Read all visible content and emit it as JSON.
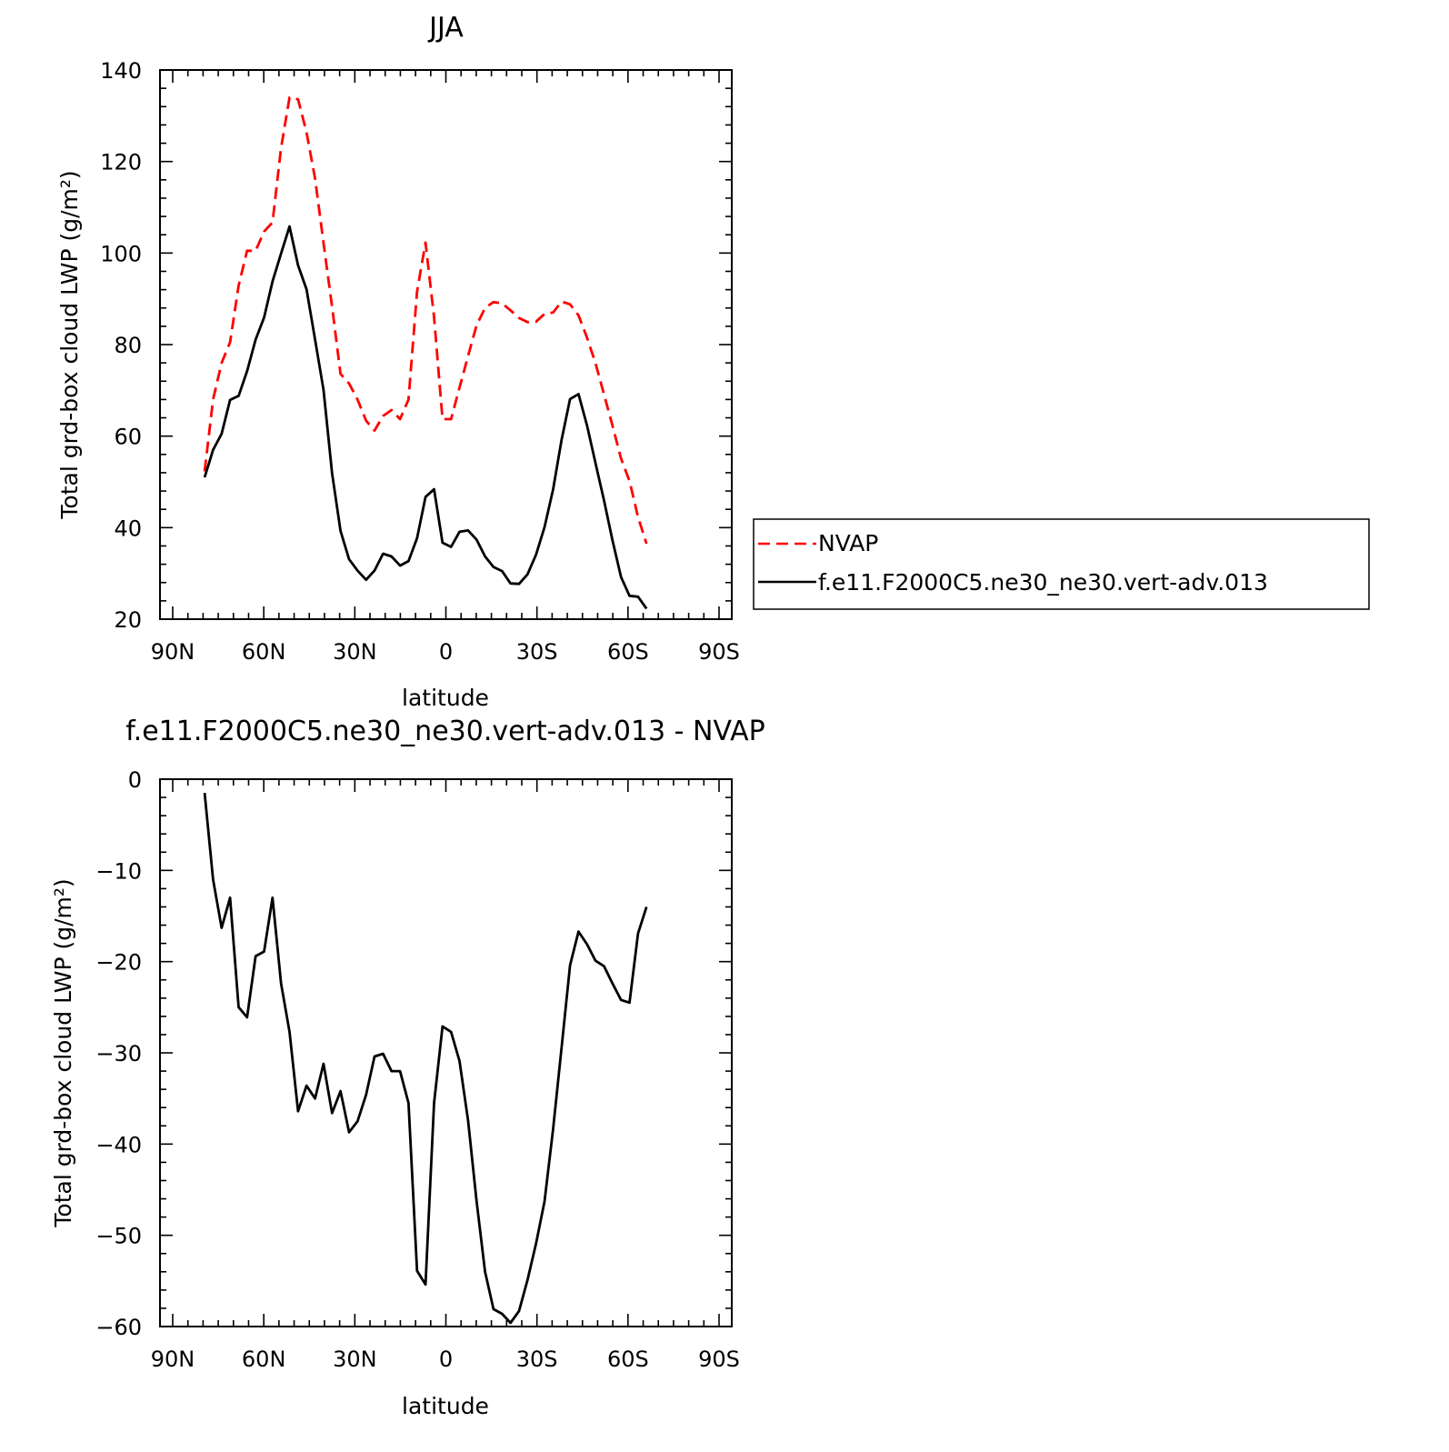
{
  "chart_data": [
    {
      "type": "line",
      "title": "JJA",
      "xlabel": "latitude",
      "ylabel": "Total grd-box cloud LWP (g/m²)",
      "xlim": [
        90,
        -90
      ],
      "ylim": [
        20,
        140
      ],
      "x_ticks": [
        90,
        60,
        30,
        0,
        -30,
        -60,
        -90
      ],
      "x_tick_labels": [
        "90N",
        "60N",
        "30N",
        "0",
        "30S",
        "60S",
        "90S"
      ],
      "y_ticks": [
        20,
        40,
        60,
        80,
        100,
        120,
        140
      ],
      "y_tick_labels": [
        "20",
        "40",
        "60",
        "80",
        "100",
        "120",
        "140"
      ],
      "grid": false,
      "legend_position": "right",
      "series": [
        {
          "name": "NVAP",
          "color": "#ff0000",
          "dash": "dashed",
          "points": [
            [
              79.5,
              52.3
            ],
            [
              76.7,
              68
            ],
            [
              73.9,
              76
            ],
            [
              71.1,
              80.5
            ],
            [
              68.3,
              92.9
            ],
            [
              65.5,
              100.5
            ],
            [
              62.7,
              100.5
            ],
            [
              59.9,
              104.7
            ],
            [
              57.1,
              106.7
            ],
            [
              54.3,
              123
            ],
            [
              51.5,
              134
            ],
            [
              48.7,
              133.6
            ],
            [
              45.9,
              126.4
            ],
            [
              43.1,
              116.3
            ],
            [
              40.3,
              102.2
            ],
            [
              37.5,
              88.3
            ],
            [
              34.7,
              73.6
            ],
            [
              31.9,
              71.5
            ],
            [
              29.1,
              68
            ],
            [
              26.3,
              63.4
            ],
            [
              23.5,
              61.2
            ],
            [
              20.7,
              64.4
            ],
            [
              17.9,
              65.7
            ],
            [
              15.1,
              63.7
            ],
            [
              12.3,
              68
            ],
            [
              9.5,
              91.6
            ],
            [
              6.7,
              102.3
            ],
            [
              3.9,
              86
            ],
            [
              1.1,
              63.7
            ],
            [
              -1.7,
              63.7
            ],
            [
              -4.5,
              70.6
            ],
            [
              -7.3,
              77.5
            ],
            [
              -10.1,
              84.2
            ],
            [
              -12.9,
              88
            ],
            [
              -15.7,
              89.3
            ],
            [
              -18.5,
              89
            ],
            [
              -21.3,
              87.5
            ],
            [
              -24.1,
              85.8
            ],
            [
              -26.9,
              84.9
            ],
            [
              -29.7,
              85
            ],
            [
              -32.5,
              86.7
            ],
            [
              -35.3,
              87
            ],
            [
              -38.1,
              89.4
            ],
            [
              -40.9,
              88.8
            ],
            [
              -43.7,
              86.4
            ],
            [
              -46.5,
              81.5
            ],
            [
              -49.3,
              75.9
            ],
            [
              -52.1,
              69.1
            ],
            [
              -54.9,
              62.3
            ],
            [
              -57.7,
              55.1
            ],
            [
              -60.5,
              50.2
            ],
            [
              -63.3,
              42.3
            ],
            [
              -66.1,
              36.5
            ]
          ]
        },
        {
          "name": "f.e11.F2000C5.ne30_ne30.vert-adv.013",
          "color": "#000000",
          "dash": "solid",
          "points": [
            [
              79.5,
              51
            ],
            [
              76.7,
              57
            ],
            [
              73.9,
              60.5
            ],
            [
              71.1,
              67.9
            ],
            [
              68.3,
              68.8
            ],
            [
              65.5,
              74.2
            ],
            [
              62.7,
              81.1
            ],
            [
              59.9,
              85.9
            ],
            [
              57.1,
              93.8
            ],
            [
              54.3,
              99.9
            ],
            [
              51.5,
              105.8
            ],
            [
              48.7,
              97.3
            ],
            [
              45.9,
              92.1
            ],
            [
              43.1,
              81.1
            ],
            [
              40.3,
              70.1
            ],
            [
              37.5,
              51.9
            ],
            [
              34.7,
              39.3
            ],
            [
              31.9,
              33.1
            ],
            [
              29.1,
              30.6
            ],
            [
              26.3,
              28.6
            ],
            [
              23.5,
              30.6
            ],
            [
              20.7,
              34.3
            ],
            [
              17.9,
              33.7
            ],
            [
              15.1,
              31.7
            ],
            [
              12.3,
              32.7
            ],
            [
              9.5,
              37.7
            ],
            [
              6.7,
              46.7
            ],
            [
              3.9,
              48.4
            ],
            [
              1.1,
              36.7
            ],
            [
              -1.7,
              35.8
            ],
            [
              -4.5,
              39.1
            ],
            [
              -7.3,
              39.4
            ],
            [
              -10.1,
              37.4
            ],
            [
              -12.9,
              33.7
            ],
            [
              -15.7,
              31.4
            ],
            [
              -18.5,
              30.5
            ],
            [
              -21.3,
              27.8
            ],
            [
              -24.1,
              27.7
            ],
            [
              -26.9,
              29.8
            ],
            [
              -29.7,
              34.1
            ],
            [
              -32.5,
              40.1
            ],
            [
              -35.3,
              48.3
            ],
            [
              -38.1,
              59.1
            ],
            [
              -40.9,
              68.1
            ],
            [
              -43.7,
              69.2
            ],
            [
              -46.5,
              62.3
            ],
            [
              -49.3,
              54.1
            ],
            [
              -52.1,
              45.9
            ],
            [
              -54.9,
              37.2
            ],
            [
              -57.7,
              29.2
            ],
            [
              -60.5,
              25.1
            ],
            [
              -63.3,
              24.9
            ],
            [
              -66.1,
              22.3
            ]
          ]
        }
      ]
    },
    {
      "type": "line",
      "title": "f.e11.F2000C5.ne30_ne30.vert-adv.013 - NVAP",
      "xlabel": "latitude",
      "ylabel": "Total grd-box cloud LWP (g/m²)",
      "xlim": [
        90,
        -90
      ],
      "ylim": [
        -60,
        0
      ],
      "x_ticks": [
        90,
        60,
        30,
        0,
        -30,
        -60,
        -90
      ],
      "x_tick_labels": [
        "90N",
        "60N",
        "30N",
        "0",
        "30S",
        "60S",
        "90S"
      ],
      "y_ticks": [
        0,
        -10,
        -20,
        -30,
        -40,
        -50,
        -60
      ],
      "y_tick_labels": [
        "0",
        "−10",
        "−20",
        "−30",
        "−40",
        "−50",
        "−60"
      ],
      "grid": false,
      "series": [
        {
          "color": "#000000",
          "dash": "solid",
          "points": [
            [
              79.5,
              -1.5
            ],
            [
              76.7,
              -11
            ],
            [
              73.9,
              -16.3
            ],
            [
              71.1,
              -13
            ],
            [
              68.3,
              -25
            ],
            [
              65.5,
              -26.1
            ],
            [
              62.7,
              -19.4
            ],
            [
              59.9,
              -18.9
            ],
            [
              57.1,
              -13
            ],
            [
              54.3,
              -22.4
            ],
            [
              51.5,
              -27.7
            ],
            [
              48.7,
              -36.4
            ],
            [
              45.9,
              -33.6
            ],
            [
              43.1,
              -35
            ],
            [
              40.3,
              -31.2
            ],
            [
              37.5,
              -36.6
            ],
            [
              34.7,
              -34.2
            ],
            [
              31.9,
              -38.7
            ],
            [
              29.1,
              -37.5
            ],
            [
              26.3,
              -34.6
            ],
            [
              23.5,
              -30.4
            ],
            [
              20.7,
              -30.1
            ],
            [
              17.9,
              -32
            ],
            [
              15.1,
              -32
            ],
            [
              12.3,
              -35.5
            ],
            [
              9.5,
              -53.9
            ],
            [
              6.7,
              -55.4
            ],
            [
              3.9,
              -35.5
            ],
            [
              1.1,
              -27.1
            ],
            [
              -1.7,
              -27.7
            ],
            [
              -4.5,
              -30.9
            ],
            [
              -7.3,
              -37.4
            ],
            [
              -10.1,
              -46.2
            ],
            [
              -12.9,
              -54
            ],
            [
              -15.7,
              -58.1
            ],
            [
              -18.5,
              -58.6
            ],
            [
              -21.3,
              -59.6
            ],
            [
              -24.1,
              -58.3
            ],
            [
              -26.9,
              -54.9
            ],
            [
              -29.7,
              -50.9
            ],
            [
              -32.5,
              -46.3
            ],
            [
              -35.3,
              -38.4
            ],
            [
              -38.1,
              -29.5
            ],
            [
              -40.9,
              -20.4
            ],
            [
              -43.7,
              -16.7
            ],
            [
              -46.5,
              -18.1
            ],
            [
              -49.3,
              -19.9
            ],
            [
              -52.1,
              -20.5
            ],
            [
              -54.9,
              -22.4
            ],
            [
              -57.7,
              -24.2
            ],
            [
              -60.5,
              -24.5
            ],
            [
              -63.3,
              -16.9
            ],
            [
              -66.1,
              -14
            ]
          ]
        }
      ]
    }
  ]
}
